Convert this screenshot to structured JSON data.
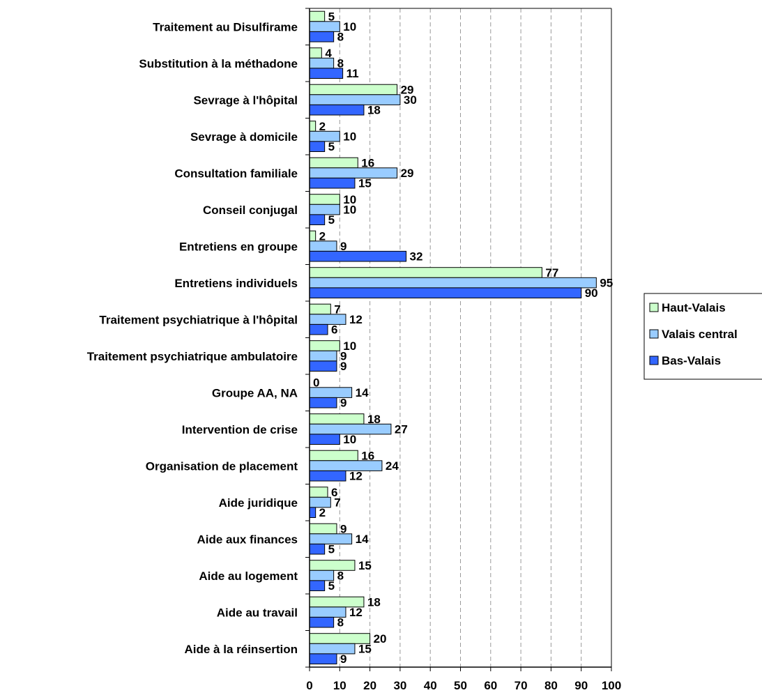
{
  "chart_data": {
    "type": "bar",
    "orientation": "horizontal",
    "categories": [
      "Traitement au Disulfirame",
      "Substitution à la méthadone",
      "Sevrage à l'hôpital",
      "Sevrage à domicile",
      "Consultation familiale",
      "Conseil conjugal",
      "Entretiens en groupe",
      "Entretiens individuels",
      "Traitement psychiatrique à l'hôpital",
      "Traitement psychiatrique ambulatoire",
      "Groupe AA, NA",
      "Intervention de crise",
      "Organisation de placement",
      "Aide juridique",
      "Aide aux finances",
      "Aide au logement",
      "Aide au travail",
      "Aide à la réinsertion"
    ],
    "series": [
      {
        "name": "Haut-Valais",
        "color": "#ccffcc",
        "values": [
          5,
          4,
          29,
          2,
          16,
          10,
          2,
          77,
          7,
          10,
          0,
          18,
          16,
          6,
          9,
          15,
          18,
          20
        ]
      },
      {
        "name": "Valais central",
        "color": "#99ccff",
        "values": [
          10,
          8,
          30,
          10,
          29,
          10,
          9,
          95,
          12,
          9,
          14,
          27,
          24,
          7,
          14,
          8,
          12,
          15
        ]
      },
      {
        "name": "Bas-Valais",
        "color": "#3366ff",
        "values": [
          8,
          11,
          18,
          5,
          15,
          5,
          32,
          90,
          6,
          9,
          9,
          10,
          12,
          2,
          5,
          5,
          8,
          9
        ]
      }
    ],
    "xlim": [
      0,
      100
    ],
    "x_ticks": [
      "0",
      "10",
      "20",
      "30",
      "40",
      "50",
      "60",
      "70",
      "80",
      "90",
      "100"
    ],
    "grid": "vertical dashed",
    "legend_position": "right",
    "title": "",
    "xlabel": "",
    "ylabel": ""
  }
}
